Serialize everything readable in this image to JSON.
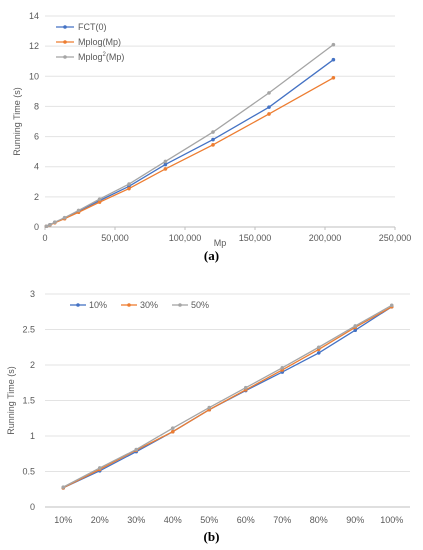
{
  "figure": {
    "caption_a": "(a)",
    "caption_b": "(b)"
  },
  "chart_data": [
    {
      "type": "line",
      "panel": "a",
      "ylabel": "Running Time (s)",
      "xlabel": "Mp",
      "xlim": [
        0,
        250000
      ],
      "ylim": [
        0,
        14
      ],
      "xticks": [
        0,
        50000,
        100000,
        150000,
        200000,
        250000
      ],
      "xtick_labels": [
        "0",
        "50,000",
        "100,000",
        "150,000",
        "200,000",
        "250,000"
      ],
      "yticks": [
        0,
        2,
        4,
        6,
        8,
        10,
        12,
        14
      ],
      "ytick_labels": [
        "0",
        "2",
        "4",
        "6",
        "8",
        "10",
        "12",
        "14"
      ],
      "grid": "horizontal",
      "legend": "top-left",
      "x": [
        1000,
        3500,
        7000,
        14000,
        24000,
        39000,
        60000,
        86000,
        120000,
        160000,
        206000
      ],
      "series": [
        {
          "name": "FCT(0)",
          "legend_base": "FCT(0)",
          "legend_sup": "",
          "legend_tail": "",
          "color": "#4472c4",
          "values": [
            0.05,
            0.15,
            0.3,
            0.6,
            1.05,
            1.75,
            2.7,
            4.15,
            5.8,
            7.95,
            11.1
          ]
        },
        {
          "name": "Mplog(Mp)",
          "legend_base": "Mplog(Mp)",
          "legend_sup": "",
          "legend_tail": "",
          "color": "#ed7d31",
          "values": [
            0.05,
            0.13,
            0.28,
            0.55,
            0.98,
            1.65,
            2.55,
            3.85,
            5.45,
            7.5,
            9.9
          ]
        },
        {
          "name": "Mplog2(Mp)",
          "legend_base": "Mplog",
          "legend_sup": "2",
          "legend_tail": "(Mp)",
          "color": "#a5a5a5",
          "values": [
            0.05,
            0.15,
            0.32,
            0.62,
            1.1,
            1.85,
            2.85,
            4.35,
            6.3,
            8.9,
            12.1
          ]
        }
      ]
    },
    {
      "type": "line",
      "panel": "b",
      "ylabel": "Running Time (s)",
      "xlabel": "",
      "ylim": [
        0,
        3
      ],
      "categories": [
        "10%",
        "20%",
        "30%",
        "40%",
        "50%",
        "60%",
        "70%",
        "80%",
        "90%",
        "100%"
      ],
      "yticks": [
        0,
        0.5,
        1,
        1.5,
        2,
        2.5,
        3
      ],
      "ytick_labels": [
        "0",
        "0.5",
        "1",
        "1.5",
        "2",
        "2.5",
        "3"
      ],
      "grid": "horizontal",
      "legend": "top-left",
      "series": [
        {
          "name": "10%",
          "color": "#4472c4",
          "values": [
            0.27,
            0.51,
            0.78,
            1.06,
            1.37,
            1.64,
            1.9,
            2.17,
            2.49,
            2.82
          ]
        },
        {
          "name": "30%",
          "color": "#ed7d31",
          "values": [
            0.27,
            0.53,
            0.8,
            1.06,
            1.37,
            1.65,
            1.93,
            2.22,
            2.53,
            2.82
          ]
        },
        {
          "name": "50%",
          "color": "#a5a5a5",
          "values": [
            0.28,
            0.55,
            0.81,
            1.11,
            1.4,
            1.68,
            1.96,
            2.25,
            2.55,
            2.84
          ]
        }
      ]
    }
  ]
}
